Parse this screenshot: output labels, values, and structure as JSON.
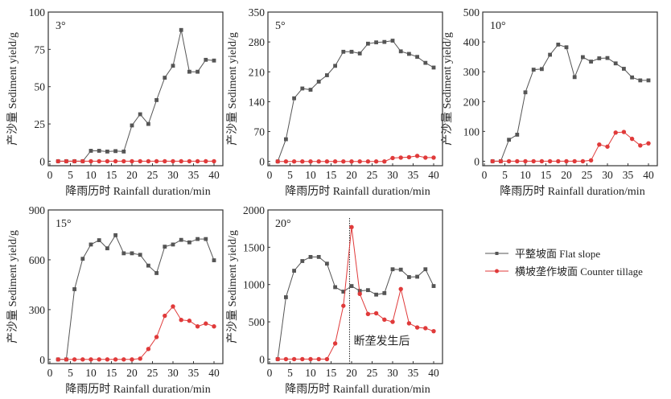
{
  "figure": {
    "legend": [
      {
        "label": "平整坡面 Flat slope",
        "series_key": "flat",
        "color": "#555555",
        "marker": "square"
      },
      {
        "label": "横坡垄作坡面 Counter tillage",
        "series_key": "counter",
        "color": "#e03a3a",
        "marker": "circle"
      }
    ],
    "legend_position": "lower-right"
  },
  "chart_data": [
    {
      "type": "line",
      "title": "3°",
      "xlabel": "降雨历时 Rainfall duration/min",
      "ylabel": "产沙量 Sediment yield/g",
      "xlim": [
        0,
        41
      ],
      "ylim": [
        -3,
        100
      ],
      "xticks": [
        0,
        5,
        10,
        15,
        20,
        25,
        30,
        35,
        40
      ],
      "yticks": [
        0,
        25,
        50,
        75,
        100
      ],
      "x": [
        2,
        4,
        6,
        8,
        10,
        12,
        14,
        16,
        18,
        20,
        22,
        24,
        26,
        28,
        30,
        32,
        34,
        36,
        38,
        40
      ],
      "series": [
        {
          "name": "平整坡面 Flat slope",
          "key": "flat",
          "values": [
            0,
            0,
            0,
            0,
            7,
            7,
            6.5,
            6.8,
            6.5,
            24,
            31.5,
            25,
            41,
            56,
            64,
            88,
            60,
            60,
            68,
            67.5
          ]
        },
        {
          "name": "横坡垄作坡面 Counter tillage",
          "key": "counter",
          "values": [
            0,
            0,
            0,
            0,
            0,
            0,
            0,
            0,
            0,
            0,
            0,
            0,
            0,
            0,
            0,
            0,
            0,
            0,
            0,
            0
          ]
        }
      ],
      "grid": false
    },
    {
      "type": "line",
      "title": "5°",
      "xlabel": "降雨历时 Rainfall duration/min",
      "ylabel": "产沙量 Sediment yield/g",
      "xlim": [
        0,
        41
      ],
      "ylim": [
        -10,
        350
      ],
      "xticks": [
        0,
        5,
        10,
        15,
        20,
        25,
        30,
        35,
        40
      ],
      "yticks": [
        0,
        70,
        140,
        210,
        280,
        350
      ],
      "x": [
        2,
        4,
        6,
        8,
        10,
        12,
        14,
        16,
        18,
        20,
        22,
        24,
        26,
        28,
        30,
        32,
        34,
        36,
        38,
        40
      ],
      "series": [
        {
          "name": "平整坡面 Flat slope",
          "key": "flat",
          "values": [
            0,
            52,
            148,
            171,
            168,
            187,
            202,
            224,
            257,
            257,
            253,
            276,
            279,
            280,
            283,
            258,
            252,
            245,
            231,
            220
          ]
        },
        {
          "name": "横坡垄作坡面 Counter tillage",
          "key": "counter",
          "values": [
            0,
            0,
            0,
            0,
            0,
            0,
            0,
            0,
            0,
            0,
            0,
            0,
            0,
            0,
            8,
            9,
            10,
            13,
            9,
            9
          ]
        }
      ],
      "grid": false
    },
    {
      "type": "line",
      "title": "10°",
      "xlabel": "降雨历时 Rainfall duration/min",
      "ylabel": "产沙量 Sediment yield/g",
      "xlim": [
        0,
        41
      ],
      "ylim": [
        -15,
        500
      ],
      "xticks": [
        0,
        5,
        10,
        15,
        20,
        25,
        30,
        35,
        40
      ],
      "yticks": [
        0,
        100,
        200,
        300,
        400,
        500
      ],
      "x": [
        2,
        4,
        6,
        8,
        10,
        12,
        14,
        16,
        18,
        20,
        22,
        24,
        26,
        28,
        30,
        32,
        34,
        36,
        38,
        40
      ],
      "series": [
        {
          "name": "平整坡面 Flat slope",
          "key": "flat",
          "values": [
            0,
            0,
            72,
            89,
            231,
            307,
            309,
            357,
            391,
            382,
            282,
            349,
            334,
            345,
            346,
            328,
            310,
            281,
            271,
            271
          ]
        },
        {
          "name": "横坡垄作坡面 Counter tillage",
          "key": "counter",
          "values": [
            0,
            0,
            0,
            0,
            0,
            0,
            0,
            0,
            0,
            0,
            0,
            0,
            3,
            56,
            49,
            96,
            98,
            75,
            53,
            60
          ]
        }
      ],
      "grid": false
    },
    {
      "type": "line",
      "title": "15°",
      "xlabel": "降雨历时 Rainfall duration/min",
      "ylabel": "产沙量 Sediment yield/g",
      "xlim": [
        0,
        41
      ],
      "ylim": [
        -25,
        900
      ],
      "xticks": [
        0,
        5,
        10,
        15,
        20,
        25,
        30,
        35,
        40
      ],
      "yticks": [
        0,
        300,
        600,
        900
      ],
      "x": [
        2,
        4,
        6,
        8,
        10,
        12,
        14,
        16,
        18,
        20,
        22,
        24,
        26,
        28,
        30,
        32,
        34,
        36,
        38,
        40
      ],
      "series": [
        {
          "name": "平整坡面 Flat slope",
          "key": "flat",
          "values": [
            0,
            0,
            423,
            606,
            692,
            718,
            669,
            748,
            639,
            639,
            630,
            565,
            520,
            679,
            692,
            720,
            705,
            725,
            725,
            597
          ]
        },
        {
          "name": "横坡垄作坡面 Counter tillage",
          "key": "counter",
          "values": [
            0,
            0,
            0,
            0,
            0,
            0,
            0,
            0,
            0,
            0,
            5,
            63,
            135,
            263,
            319,
            238,
            233,
            199,
            216,
            199
          ]
        }
      ],
      "grid": false
    },
    {
      "type": "line",
      "title": "20°",
      "xlabel": "降雨历时 Rainfall duration/min",
      "ylabel": "产沙量 Sediment yield/g",
      "xlim": [
        0,
        41
      ],
      "ylim": [
        -60,
        2000
      ],
      "xticks": [
        0,
        5,
        10,
        15,
        20,
        25,
        30,
        35,
        40
      ],
      "yticks": [
        0,
        500,
        1000,
        1500,
        2000
      ],
      "x": [
        2,
        4,
        6,
        8,
        10,
        12,
        14,
        16,
        18,
        20,
        22,
        24,
        26,
        28,
        30,
        32,
        34,
        36,
        38,
        40
      ],
      "series": [
        {
          "name": "平整坡面 Flat slope",
          "key": "flat",
          "values": [
            0,
            830,
            1185,
            1315,
            1370,
            1370,
            1280,
            965,
            905,
            980,
            915,
            925,
            865,
            885,
            1205,
            1200,
            1100,
            1105,
            1205,
            980
          ]
        },
        {
          "name": "横坡垄作坡面 Counter tillage",
          "key": "counter",
          "values": [
            0,
            0,
            0,
            0,
            0,
            0,
            0,
            210,
            715,
            1770,
            875,
            605,
            615,
            530,
            500,
            940,
            480,
            425,
            415,
            375
          ]
        }
      ],
      "vline": {
        "x": 19.5,
        "style": "dotted"
      },
      "annotation": {
        "text": "断垄发生后",
        "x": 20.5,
        "y": 250
      },
      "grid": false
    }
  ]
}
